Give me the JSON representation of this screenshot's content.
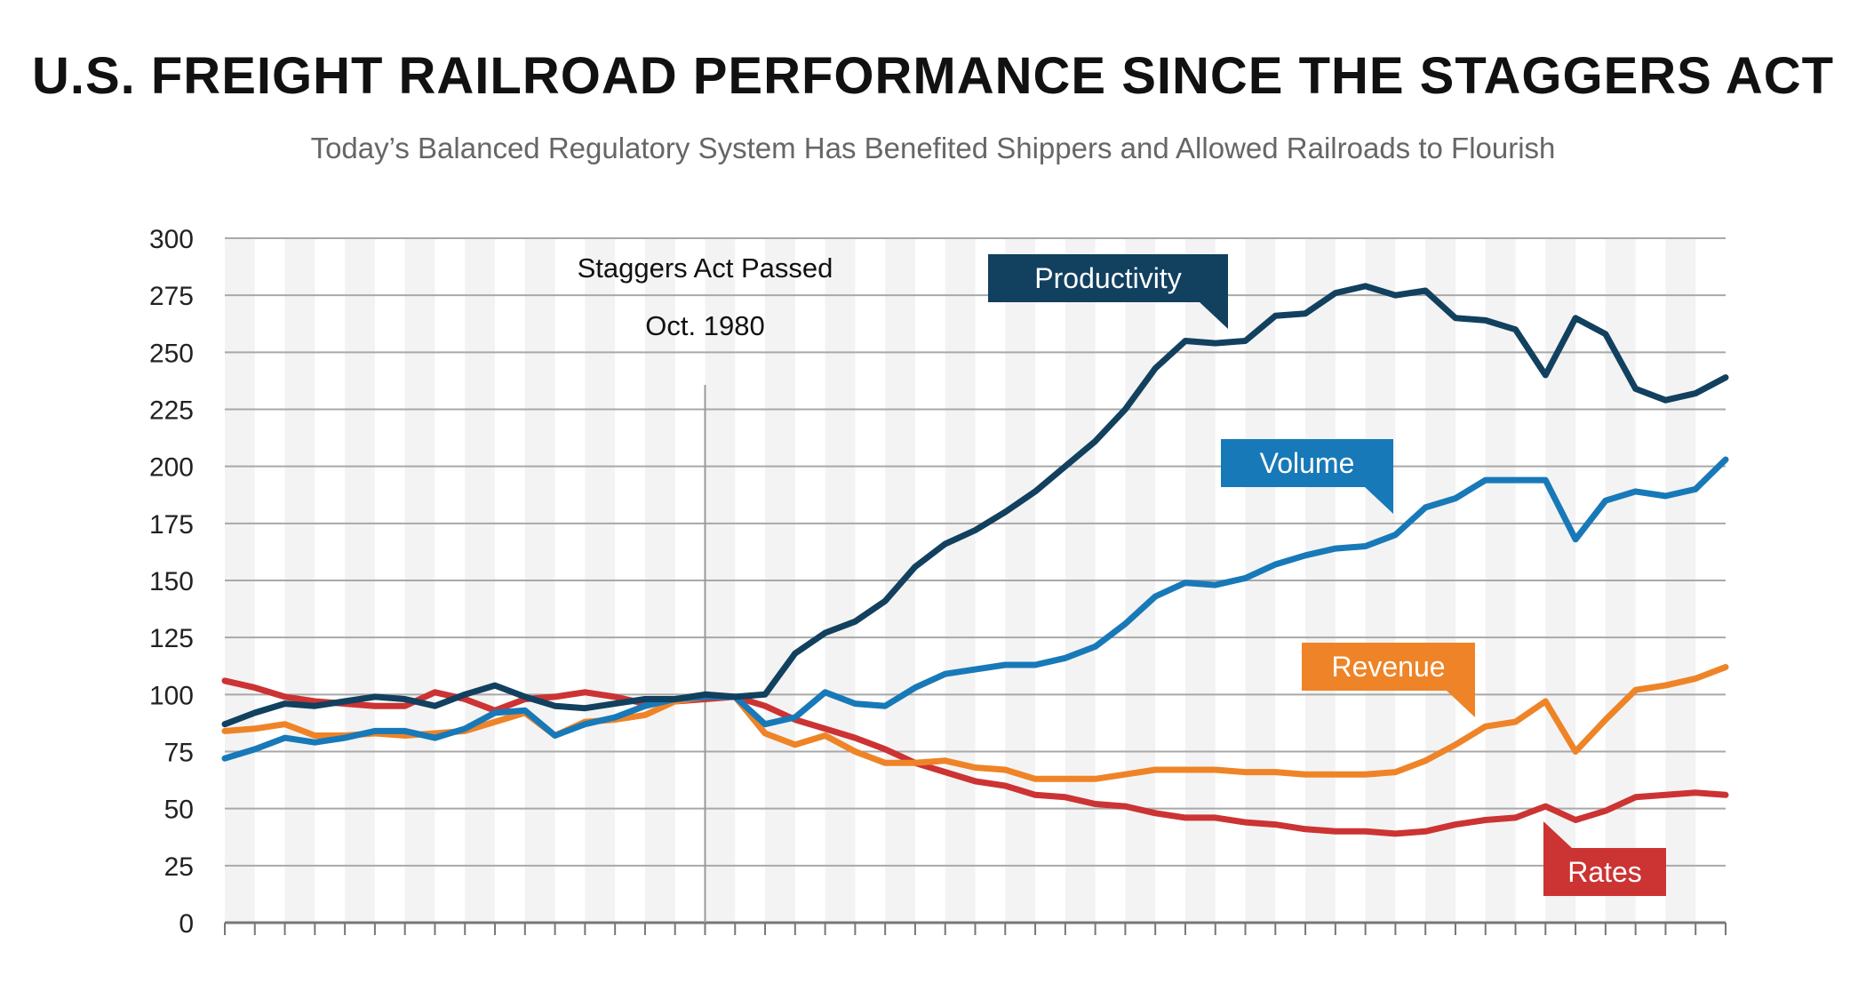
{
  "title": "U.S. FREIGHT RAILROAD PERFORMANCE SINCE THE STAGGERS ACT",
  "subtitle": "Today’s Balanced Regulatory System Has Benefited Shippers and Allowed Railroads to Flourish",
  "chart_data": {
    "type": "line",
    "ylim": [
      0,
      300
    ],
    "y_ticks": [
      "0",
      "25",
      "50",
      "75",
      "100",
      "125",
      "150",
      "175",
      "200",
      "225",
      "250",
      "275",
      "300"
    ],
    "grid": true,
    "annotation": {
      "line1": "Staggers Act Passed",
      "line2": "Oct. 1980",
      "x_index": 16
    },
    "series": [
      {
        "name": "Productivity",
        "color": "#12405f",
        "label_pos": "upper-middle",
        "values": [
          87,
          92,
          96,
          95,
          97,
          99,
          98,
          95,
          100,
          104,
          99,
          95,
          94,
          96,
          98,
          98,
          100,
          99,
          100,
          118,
          127,
          132,
          141,
          156,
          166,
          172,
          180,
          189,
          200,
          211,
          225,
          243,
          255,
          254,
          255,
          266,
          267,
          276,
          279,
          275,
          277,
          265,
          264,
          260,
          240,
          265,
          258,
          234,
          229,
          232,
          239
        ]
      },
      {
        "name": "Volume",
        "color": "#1879b8",
        "label_pos": "upper-right",
        "values": [
          72,
          76,
          81,
          79,
          81,
          84,
          84,
          81,
          85,
          92,
          93,
          82,
          87,
          90,
          95,
          98,
          99,
          99,
          87,
          90,
          101,
          96,
          95,
          103,
          109,
          111,
          113,
          113,
          116,
          121,
          131,
          143,
          149,
          148,
          151,
          157,
          161,
          164,
          165,
          170,
          182,
          186,
          194,
          194,
          194,
          168,
          185,
          189,
          187,
          190,
          203
        ]
      },
      {
        "name": "Revenue",
        "color": "#ee8427",
        "label_pos": "lower-right",
        "values": [
          84,
          85,
          87,
          82,
          82,
          83,
          82,
          83,
          84,
          88,
          92,
          82,
          88,
          89,
          91,
          97,
          99,
          99,
          83,
          78,
          82,
          75,
          70,
          70,
          71,
          68,
          67,
          63,
          63,
          63,
          65,
          67,
          67,
          67,
          66,
          66,
          65,
          65,
          65,
          66,
          71,
          78,
          86,
          88,
          97,
          75,
          89,
          102,
          104,
          107,
          112
        ]
      },
      {
        "name": "Rates",
        "color": "#cc3333",
        "label_pos": "lower-right",
        "values": [
          106,
          103,
          99,
          97,
          96,
          95,
          95,
          101,
          98,
          93,
          98,
          99,
          101,
          99,
          96,
          97,
          98,
          99,
          95,
          89,
          85,
          81,
          76,
          70,
          66,
          62,
          60,
          56,
          55,
          52,
          51,
          48,
          46,
          46,
          44,
          43,
          41,
          40,
          40,
          39,
          40,
          43,
          45,
          46,
          51,
          45,
          49,
          55,
          56,
          57,
          56
        ]
      }
    ]
  }
}
